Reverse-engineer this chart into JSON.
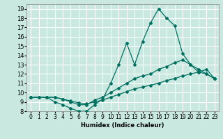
{
  "xlabel": "Humidex (Indice chaleur)",
  "xlim": [
    -0.5,
    23.5
  ],
  "ylim": [
    8,
    19.5
  ],
  "xticks": [
    0,
    1,
    2,
    3,
    4,
    5,
    6,
    7,
    8,
    9,
    10,
    11,
    12,
    13,
    14,
    15,
    16,
    17,
    18,
    19,
    20,
    21,
    22,
    23
  ],
  "yticks": [
    8,
    9,
    10,
    11,
    12,
    13,
    14,
    15,
    16,
    17,
    18,
    19
  ],
  "bg_color": "#c8e8e0",
  "grid_color": "#ffffff",
  "line_color": "#007060",
  "curves": [
    {
      "x": [
        0,
        1,
        2,
        3,
        4,
        5,
        6,
        7,
        8,
        9,
        10,
        11,
        12,
        13,
        14,
        15,
        16,
        17,
        18,
        19,
        20,
        21,
        22,
        23
      ],
      "y": [
        9.5,
        9.5,
        9.5,
        9.0,
        8.7,
        8.3,
        8.0,
        8.0,
        8.7,
        9.3,
        11.0,
        13.0,
        15.3,
        13.0,
        15.5,
        17.5,
        19.0,
        18.0,
        17.2,
        14.2,
        13.0,
        12.2,
        12.0,
        11.5
      ]
    },
    {
      "x": [
        0,
        1,
        2,
        3,
        4,
        5,
        6,
        7,
        8,
        9,
        10,
        11,
        12,
        13,
        14,
        15,
        16,
        17,
        18,
        19,
        20,
        21,
        22,
        23
      ],
      "y": [
        9.5,
        9.5,
        9.5,
        9.5,
        9.3,
        9.0,
        8.7,
        8.7,
        9.2,
        9.5,
        10.0,
        10.5,
        11.0,
        11.5,
        11.8,
        12.0,
        12.5,
        12.8,
        13.2,
        13.5,
        13.0,
        12.5,
        12.0,
        11.5
      ]
    },
    {
      "x": [
        0,
        1,
        2,
        3,
        4,
        5,
        6,
        7,
        8,
        9,
        10,
        11,
        12,
        13,
        14,
        15,
        16,
        17,
        18,
        19,
        20,
        21,
        22,
        23
      ],
      "y": [
        9.5,
        9.5,
        9.5,
        9.5,
        9.3,
        9.1,
        8.9,
        8.8,
        9.0,
        9.2,
        9.5,
        9.8,
        10.1,
        10.4,
        10.6,
        10.8,
        11.0,
        11.3,
        11.5,
        11.8,
        12.0,
        12.2,
        12.5,
        11.5
      ]
    }
  ]
}
